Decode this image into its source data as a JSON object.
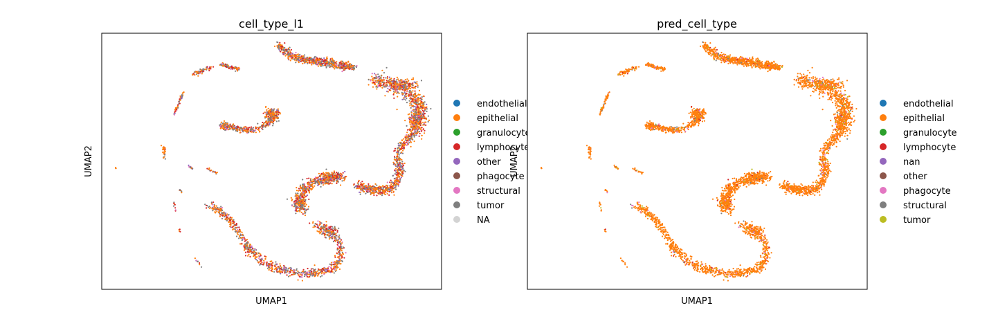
{
  "chart_data": [
    {
      "type": "scatter",
      "title": "cell_type_l1",
      "xlabel": "UMAP1",
      "ylabel": "UMAP2",
      "ticks": "none",
      "grid": false,
      "legend_position": "right",
      "legend": [
        {
          "label": "endothelial",
          "color": "#1f77b4"
        },
        {
          "label": "epithelial",
          "color": "#ff7f0e"
        },
        {
          "label": "granulocyte",
          "color": "#2ca02c"
        },
        {
          "label": "lymphocyte",
          "color": "#d62728"
        },
        {
          "label": "other",
          "color": "#9467bd"
        },
        {
          "label": "phagocyte",
          "color": "#8c564b"
        },
        {
          "label": "structural",
          "color": "#e377c2"
        },
        {
          "label": "tumor",
          "color": "#7f7f7f"
        },
        {
          "label": "NA",
          "color": "#d3d3d3"
        }
      ],
      "mix": [
        {
          "color": "#ff7f0e",
          "weight": 0.42
        },
        {
          "color": "#7f7f7f",
          "weight": 0.28
        },
        {
          "color": "#d62728",
          "weight": 0.2
        },
        {
          "color": "#9467bd",
          "weight": 0.05
        },
        {
          "color": "#e377c2",
          "weight": 0.05
        }
      ]
    },
    {
      "type": "scatter",
      "title": "pred_cell_type",
      "xlabel": "UMAP1",
      "ylabel": "UMAP2",
      "ticks": "none",
      "grid": false,
      "legend_position": "right",
      "legend": [
        {
          "label": "endothelial",
          "color": "#1f77b4"
        },
        {
          "label": "epithelial",
          "color": "#ff7f0e"
        },
        {
          "label": "granulocyte",
          "color": "#2ca02c"
        },
        {
          "label": "lymphocyte",
          "color": "#d62728"
        },
        {
          "label": "nan",
          "color": "#9467bd"
        },
        {
          "label": "other",
          "color": "#8c564b"
        },
        {
          "label": "phagocyte",
          "color": "#e377c2"
        },
        {
          "label": "structural",
          "color": "#7f7f7f"
        },
        {
          "label": "tumor",
          "color": "#bcbd22"
        }
      ],
      "mix": [
        {
          "color": "#ff7f0e",
          "weight": 0.9
        },
        {
          "color": "#e377c2",
          "weight": 0.03
        },
        {
          "color": "#bcbd22",
          "weight": 0.03
        },
        {
          "color": "#d62728",
          "weight": 0.02
        },
        {
          "color": "#7f7f7f",
          "weight": 0.02
        }
      ]
    }
  ]
}
